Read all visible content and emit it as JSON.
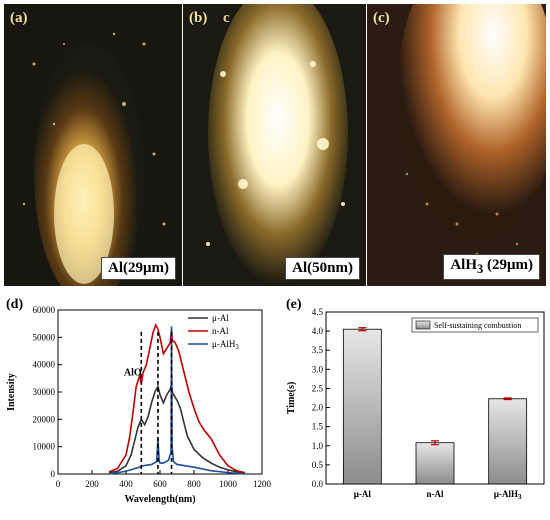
{
  "panels": {
    "a": {
      "label": "(a)",
      "caption": "Al(29μm)"
    },
    "b": {
      "label": "(b)",
      "label_extra": "c",
      "caption": "Al(50nm)"
    },
    "c": {
      "label": "(c)",
      "caption_main": "AlH",
      "caption_sub": "3",
      "caption_tail": " (29μm)"
    }
  },
  "chart_data": [
    {
      "panel_label": "(d)",
      "type": "line",
      "xlabel": "Wavelength(nm)",
      "ylabel": "Intensity",
      "xlim": [
        0,
        1200
      ],
      "ylim": [
        0,
        60000
      ],
      "xticks": [
        0,
        200,
        400,
        600,
        800,
        1000,
        1200
      ],
      "yticks": [
        0,
        10000,
        20000,
        30000,
        40000,
        50000,
        60000
      ],
      "annotation": "AlO",
      "vlines": [
        490,
        588,
        668
      ],
      "legend_position": "top-right",
      "series": [
        {
          "name": "μ-Al",
          "color": "#333333",
          "x": [
            300,
            350,
            400,
            430,
            450,
            470,
            490,
            510,
            530,
            550,
            570,
            588,
            600,
            620,
            640,
            660,
            668,
            672,
            680,
            700,
            720,
            740,
            760,
            800,
            850,
            900,
            950,
            1000,
            1050,
            1100
          ],
          "y": [
            500,
            1000,
            3000,
            7000,
            12000,
            17000,
            20000,
            18000,
            21000,
            26000,
            30000,
            32000,
            29000,
            26000,
            29000,
            31000,
            33000,
            30000,
            29000,
            27000,
            24000,
            19000,
            14000,
            9000,
            6000,
            4000,
            2500,
            1500,
            800,
            400
          ]
        },
        {
          "name": "n-Al",
          "color": "#c00000",
          "x": [
            300,
            350,
            400,
            420,
            440,
            460,
            480,
            490,
            500,
            520,
            540,
            560,
            575,
            588,
            600,
            620,
            640,
            660,
            668,
            672,
            690,
            710,
            730,
            750,
            770,
            800,
            830,
            860,
            900,
            950,
            1000,
            1050,
            1100
          ],
          "y": [
            800,
            2000,
            7000,
            13000,
            22000,
            32000,
            36000,
            33000,
            37000,
            40000,
            46000,
            52000,
            54500,
            53000,
            50000,
            44000,
            46000,
            48000,
            53000,
            49000,
            48000,
            45000,
            40000,
            35000,
            30000,
            24000,
            19000,
            16000,
            13000,
            7000,
            3000,
            1200,
            500
          ]
        },
        {
          "name": "μ-AlH",
          "name_sub": "3",
          "color": "#1f4e9c",
          "x": [
            300,
            400,
            480,
            500,
            550,
            580,
            588,
            595,
            600,
            620,
            650,
            665,
            668,
            671,
            680,
            700,
            750,
            800,
            900,
            1000,
            1100
          ],
          "y": [
            0,
            1000,
            2500,
            3000,
            3500,
            4500,
            13000,
            5000,
            4000,
            4000,
            5000,
            8000,
            54000,
            10000,
            4500,
            3500,
            3000,
            2500,
            1200,
            500,
            0
          ]
        }
      ]
    },
    {
      "panel_label": "(e)",
      "type": "bar",
      "ylabel": "Time(s)",
      "ylim": [
        0,
        4.5
      ],
      "yticks": [
        0.0,
        0.5,
        1.0,
        1.5,
        2.0,
        2.5,
        3.0,
        3.5,
        4.0,
        4.5
      ],
      "categories": [
        {
          "main": "μ-Al",
          "sub": ""
        },
        {
          "main": "n-Al",
          "sub": ""
        },
        {
          "main": "μ-AlH",
          "sub": "3"
        }
      ],
      "values": [
        4.05,
        1.08,
        2.23
      ],
      "errors": [
        0.04,
        0.05,
        0.02
      ],
      "legend": "Self-sustaining combustion",
      "legend_position": "top-right"
    }
  ]
}
